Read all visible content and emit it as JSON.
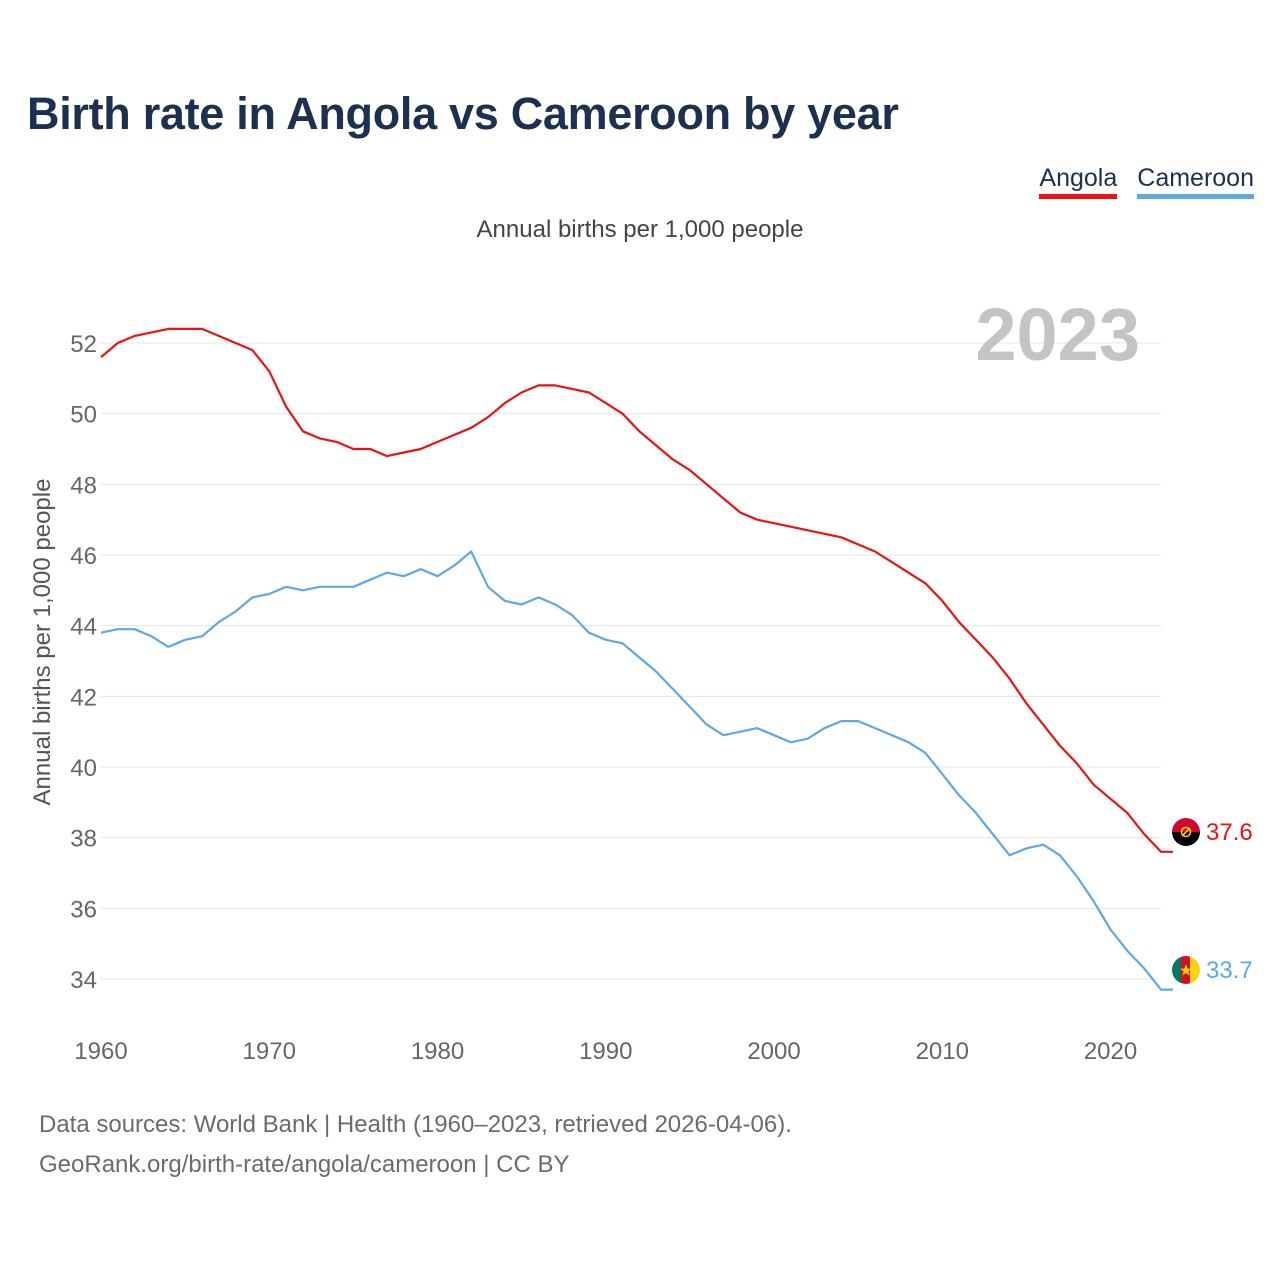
{
  "title": "Birth rate in Angola vs Cameroon by year",
  "subtitle": "Annual births per 1,000 people",
  "legend": [
    {
      "name": "Angola",
      "color": "#ee1111"
    },
    {
      "name": "Cameroon",
      "color": "#5ea8e6"
    }
  ],
  "footer": {
    "line1": "Data sources: World Bank | Health (1960–2023, retrieved 2026-04-06).",
    "line2": "GeoRank.org/birth-rate/angola/cameroon | CC BY"
  },
  "chart_data": {
    "type": "line",
    "year_watermark": "2023",
    "ylabel": "Annual births per 1,000 people",
    "xlabel": "",
    "xlim": [
      1960,
      2023
    ],
    "ylim": [
      32.5,
      53.5
    ],
    "x_ticks": [
      1960,
      1970,
      1980,
      1990,
      2000,
      2010,
      2020
    ],
    "y_ticks": [
      34,
      36,
      38,
      40,
      42,
      44,
      46,
      48,
      50,
      52
    ],
    "grid": true,
    "x": [
      1960,
      1961,
      1962,
      1963,
      1964,
      1965,
      1966,
      1967,
      1968,
      1969,
      1970,
      1971,
      1972,
      1973,
      1974,
      1975,
      1976,
      1977,
      1978,
      1979,
      1980,
      1981,
      1982,
      1983,
      1984,
      1985,
      1986,
      1987,
      1988,
      1989,
      1990,
      1991,
      1992,
      1993,
      1994,
      1995,
      1996,
      1997,
      1998,
      1999,
      2000,
      2001,
      2002,
      2003,
      2004,
      2005,
      2006,
      2007,
      2008,
      2009,
      2010,
      2011,
      2012,
      2013,
      2014,
      2015,
      2016,
      2017,
      2018,
      2019,
      2020,
      2021,
      2022,
      2023
    ],
    "series": [
      {
        "name": "Angola",
        "color": "#ee1111",
        "end_label": "37.6",
        "values": [
          51.6,
          52.0,
          52.2,
          52.3,
          52.4,
          52.4,
          52.4,
          52.2,
          52.0,
          51.8,
          51.2,
          50.2,
          49.5,
          49.3,
          49.2,
          49.0,
          49.0,
          48.8,
          48.9,
          49.0,
          49.2,
          49.4,
          49.6,
          49.9,
          50.3,
          50.6,
          50.8,
          50.8,
          50.7,
          50.6,
          50.3,
          50.0,
          49.5,
          49.1,
          48.7,
          48.4,
          48.0,
          47.6,
          47.2,
          47.0,
          46.9,
          46.8,
          46.7,
          46.6,
          46.5,
          46.3,
          46.1,
          45.8,
          45.5,
          45.2,
          44.7,
          44.1,
          43.6,
          43.1,
          42.5,
          41.8,
          41.2,
          40.6,
          40.1,
          39.5,
          39.1,
          38.7,
          38.1,
          37.6
        ]
      },
      {
        "name": "Cameroon",
        "color": "#5ea8e6",
        "end_label": "33.7",
        "values": [
          43.8,
          43.9,
          43.9,
          43.7,
          43.4,
          43.6,
          43.7,
          44.1,
          44.4,
          44.8,
          44.9,
          45.1,
          45.0,
          45.1,
          45.1,
          45.1,
          45.3,
          45.5,
          45.4,
          45.6,
          45.4,
          45.7,
          46.1,
          45.1,
          44.7,
          44.6,
          44.8,
          44.6,
          44.3,
          43.8,
          43.6,
          43.5,
          43.1,
          42.7,
          42.2,
          41.7,
          41.2,
          40.9,
          41.0,
          41.1,
          40.9,
          40.7,
          40.8,
          41.1,
          41.3,
          41.3,
          41.1,
          40.9,
          40.7,
          40.4,
          39.8,
          39.2,
          38.7,
          38.1,
          37.5,
          37.7,
          37.8,
          37.5,
          36.9,
          36.2,
          35.4,
          34.8,
          34.3,
          33.7
        ]
      }
    ]
  }
}
